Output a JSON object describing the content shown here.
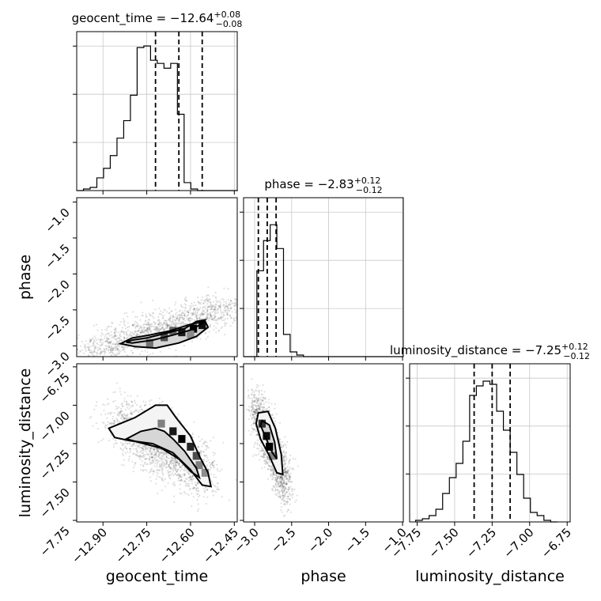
{
  "chart_data": {
    "type": "corner",
    "parameters": [
      "geocent_time",
      "phase",
      "luminosity_distance"
    ],
    "axis_labels": {
      "x": [
        "geocent_time",
        "phase",
        "luminosity_distance"
      ],
      "y": [
        "phase",
        "luminosity_distance"
      ]
    },
    "grid": true,
    "panels_1d": [
      {
        "parameter": "geocent_time",
        "title_name": "geocent_time",
        "median": "−12.64",
        "plus": "+0.08",
        "minus": "−0.08",
        "quantiles": [
          -12.72,
          -12.64,
          -12.56
        ],
        "xlim": [
          -12.99,
          -12.44
        ],
        "xticks": [
          -12.9,
          -12.75,
          -12.6,
          -12.45
        ],
        "xtick_labels": [
          "−12.90",
          "−12.75",
          "−12.60",
          "−12.45"
        ],
        "ymax": 1.0,
        "bins": [
          -12.99,
          -12.967,
          -12.944,
          -12.921,
          -12.898,
          -12.875,
          -12.852,
          -12.829,
          -12.806,
          -12.783,
          -12.76,
          -12.737,
          -12.714,
          -12.691,
          -12.668,
          -12.645,
          -12.622,
          -12.599,
          -12.576,
          -12.553,
          -12.53,
          -12.507,
          -12.484,
          -12.461,
          -12.438
        ],
        "counts": [
          0,
          0.01,
          0.02,
          0.08,
          0.14,
          0.22,
          0.33,
          0.44,
          0.6,
          0.9,
          0.91,
          0.82,
          0.8,
          0.77,
          0.8,
          0.48,
          0.05,
          0.01,
          0.0,
          0.0,
          0.0,
          0.0,
          0.0,
          0.0
        ]
      },
      {
        "parameter": "phase",
        "title_name": "phase",
        "median": "−2.83",
        "plus": "+0.12",
        "minus": "−0.12",
        "quantiles": [
          -2.95,
          -2.83,
          -2.71
        ],
        "xlim": [
          -3.15,
          -0.99
        ],
        "xticks": [
          -3.0,
          -2.5,
          -2.0,
          -1.5,
          -1.0
        ],
        "xtick_labels": [
          "−3.0",
          "−2.5",
          "−2.0",
          "−1.5",
          "−1.0"
        ],
        "ymax": 1.0,
        "bins": [
          -3.15,
          -3.06,
          -2.97,
          -2.88,
          -2.79,
          -2.7,
          -2.61,
          -2.52,
          -2.43,
          -2.34,
          -2.25,
          -2.16,
          -2.07,
          -1.98,
          -1.89,
          -1.8,
          -1.71,
          -1.62,
          -1.53,
          -1.44,
          -1.35,
          -1.26,
          -1.17,
          -1.08,
          -0.99
        ],
        "counts": [
          0.0,
          0.0,
          0.54,
          0.73,
          0.83,
          0.68,
          0.14,
          0.03,
          0.01,
          0.0,
          0.0,
          0.0,
          0.0,
          0.0,
          0.0,
          0.0,
          0.0,
          0.0,
          0.0,
          0.0,
          0.0,
          0.0,
          0.0,
          0.0
        ]
      },
      {
        "parameter": "luminosity_distance",
        "title_name": "luminosity_distance",
        "median": "−7.25",
        "plus": "+0.12",
        "minus": "−0.12",
        "quantiles": [
          -7.37,
          -7.25,
          -7.13
        ],
        "xlim": [
          -7.8,
          -6.73
        ],
        "xticks": [
          -7.75,
          -7.5,
          -7.25,
          -7.0,
          -6.75
        ],
        "xtick_labels": [
          "−7.75",
          "−7.50",
          "−7.25",
          "−7.00",
          "−6.75"
        ],
        "ymax": 1.0,
        "bins": [
          -7.76,
          -7.715,
          -7.67,
          -7.625,
          -7.58,
          -7.535,
          -7.49,
          -7.445,
          -7.4,
          -7.355,
          -7.31,
          -7.265,
          -7.22,
          -7.175,
          -7.13,
          -7.085,
          -7.04,
          -6.995,
          -6.95,
          -6.905,
          -6.86,
          -6.815
        ],
        "counts": [
          0.01,
          0.02,
          0.04,
          0.08,
          0.18,
          0.28,
          0.37,
          0.51,
          0.8,
          0.86,
          0.89,
          0.87,
          0.7,
          0.58,
          0.44,
          0.3,
          0.15,
          0.06,
          0.04,
          0.01,
          0.0
        ]
      }
    ],
    "panels_2d": [
      {
        "x": "geocent_time",
        "y": "phase",
        "xlim": [
          -12.99,
          -12.44
        ],
        "ylim": [
          -3.15,
          -0.94
        ],
        "yticks": [
          -3.0,
          -2.5,
          -2.0,
          -1.5,
          -1.0
        ],
        "ytick_labels": [
          "−3.0",
          "−2.5",
          "−2.0",
          "−1.5",
          "−1.0"
        ],
        "cloud": {
          "x0": -12.93,
          "y0": -3.08,
          "x1": -12.48,
          "y1": -2.46,
          "spread": 0.11,
          "n": 1400
        },
        "contours": [
          [
            [
              -12.8,
              -2.96
            ],
            [
              -12.73,
              -2.92
            ],
            [
              -12.66,
              -2.85
            ],
            [
              -12.6,
              -2.78
            ],
            [
              -12.56,
              -2.69
            ],
            [
              -12.55,
              -2.64
            ],
            [
              -12.58,
              -2.66
            ],
            [
              -12.62,
              -2.76
            ],
            [
              -12.68,
              -2.82
            ],
            [
              -12.75,
              -2.89
            ],
            [
              -12.8,
              -2.92
            ],
            [
              -12.82,
              -2.95
            ],
            [
              -12.8,
              -2.96
            ]
          ],
          [
            [
              -12.72,
              -3.03
            ],
            [
              -12.64,
              -2.96
            ],
            [
              -12.58,
              -2.87
            ],
            [
              -12.54,
              -2.74
            ],
            [
              -12.55,
              -2.66
            ],
            [
              -12.6,
              -2.7
            ],
            [
              -12.67,
              -2.79
            ],
            [
              -12.74,
              -2.85
            ],
            [
              -12.8,
              -2.89
            ],
            [
              -12.84,
              -2.97
            ],
            [
              -12.79,
              -3.01
            ],
            [
              -12.72,
              -3.03
            ]
          ]
        ],
        "cells": [
          [
            -12.74,
            -2.96,
            0.55
          ],
          [
            -12.69,
            -2.88,
            0.7
          ],
          [
            -12.63,
            -2.81,
            0.9
          ],
          [
            -12.59,
            -2.76,
            1.0
          ],
          [
            -12.56,
            -2.71,
            0.95
          ],
          [
            -12.66,
            -2.79,
            0.6
          ],
          [
            -12.6,
            -2.84,
            0.45
          ]
        ]
      },
      {
        "x": "geocent_time",
        "y": "luminosity_distance",
        "xlim": [
          -12.99,
          -12.44
        ],
        "ylim": [
          -7.76,
          -6.73
        ],
        "yticks": [
          -7.75,
          -7.5,
          -7.25,
          -7.0,
          -6.75
        ],
        "ytick_labels": [
          "−7.75",
          "−7.50",
          "−7.25",
          "−7.00",
          "−6.75"
        ],
        "cloud": {
          "x0": -12.85,
          "y0": -7.1,
          "x1": -12.55,
          "y1": -7.45,
          "spread": 0.09,
          "n": 1800
        },
        "contours": [
          [
            [
              -12.88,
              -7.15
            ],
            [
              -12.79,
              -7.08
            ],
            [
              -12.72,
              -7.0
            ],
            [
              -12.68,
              -7.0
            ],
            [
              -12.65,
              -7.08
            ],
            [
              -12.6,
              -7.2
            ],
            [
              -12.57,
              -7.33
            ],
            [
              -12.54,
              -7.44
            ],
            [
              -12.53,
              -7.53
            ],
            [
              -12.56,
              -7.52
            ],
            [
              -12.6,
              -7.42
            ],
            [
              -12.66,
              -7.31
            ],
            [
              -12.73,
              -7.25
            ],
            [
              -12.81,
              -7.23
            ],
            [
              -12.86,
              -7.21
            ],
            [
              -12.88,
              -7.15
            ]
          ],
          [
            [
              -12.82,
              -7.22
            ],
            [
              -12.77,
              -7.17
            ],
            [
              -12.72,
              -7.15
            ],
            [
              -12.69,
              -7.17
            ],
            [
              -12.66,
              -7.22
            ],
            [
              -12.62,
              -7.3
            ],
            [
              -12.58,
              -7.41
            ],
            [
              -12.57,
              -7.47
            ],
            [
              -12.6,
              -7.43
            ],
            [
              -12.64,
              -7.35
            ],
            [
              -12.7,
              -7.28
            ],
            [
              -12.76,
              -7.25
            ],
            [
              -12.82,
              -7.22
            ]
          ]
        ],
        "cells": [
          [
            -12.7,
            -7.12,
            0.5
          ],
          [
            -12.66,
            -7.17,
            0.9
          ],
          [
            -12.63,
            -7.22,
            1.0
          ],
          [
            -12.6,
            -7.27,
            0.85
          ],
          [
            -12.58,
            -7.33,
            0.7
          ],
          [
            -12.57,
            -7.39,
            0.5
          ],
          [
            -12.55,
            -7.44,
            0.45
          ]
        ]
      },
      {
        "x": "phase",
        "y": "luminosity_distance",
        "xlim": [
          -3.15,
          -0.99
        ],
        "ylim": [
          -7.76,
          -6.73
        ],
        "cloud": {
          "x0": -3.0,
          "y0": -7.0,
          "x1": -2.55,
          "y1": -7.55,
          "spread": 0.08,
          "n": 1500
        },
        "contours": [
          [
            [
              -2.95,
              -7.05
            ],
            [
              -2.82,
              -7.04
            ],
            [
              -2.72,
              -7.15
            ],
            [
              -2.64,
              -7.32
            ],
            [
              -2.62,
              -7.45
            ],
            [
              -2.7,
              -7.44
            ],
            [
              -2.8,
              -7.33
            ],
            [
              -2.92,
              -7.22
            ],
            [
              -2.98,
              -7.12
            ],
            [
              -2.95,
              -7.05
            ]
          ],
          [
            [
              -2.9,
              -7.1
            ],
            [
              -2.8,
              -7.13
            ],
            [
              -2.73,
              -7.24
            ],
            [
              -2.7,
              -7.35
            ],
            [
              -2.76,
              -7.31
            ],
            [
              -2.86,
              -7.2
            ],
            [
              -2.92,
              -7.13
            ],
            [
              -2.9,
              -7.1
            ]
          ]
        ],
        "cells": [
          [
            -2.9,
            -7.12,
            0.8
          ],
          [
            -2.84,
            -7.2,
            0.95
          ],
          [
            -2.8,
            -7.27,
            1.0
          ],
          [
            -2.76,
            -7.33,
            0.5
          ]
        ]
      }
    ]
  }
}
